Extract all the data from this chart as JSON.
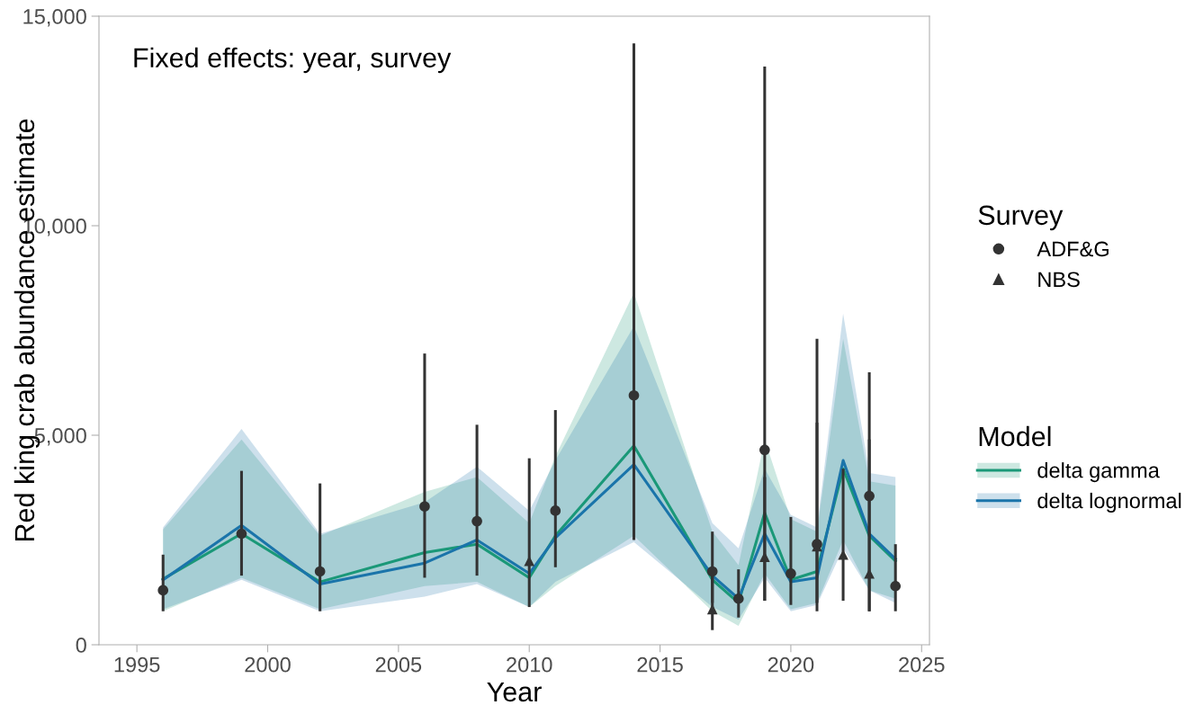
{
  "chart_data": {
    "type": "line",
    "xlabel": "Year",
    "ylabel": "Red king crab abundance estimate",
    "legend_title": [
      "Survey",
      "Model"
    ],
    "annotations": [
      "Fixed effects: year, survey"
    ],
    "xlim": [
      1993.55,
      2025.3
    ],
    "xticks": [
      1995,
      2000,
      2005,
      2010,
      2015,
      2020,
      2025
    ],
    "ylim": [
      0,
      15000
    ],
    "yticks": [
      {
        "value": 0,
        "label": "0"
      },
      {
        "value": 5000,
        "label": "5,000"
      },
      {
        "value": 10000,
        "label": "10,000"
      },
      {
        "value": 15000,
        "label": "15,000"
      }
    ],
    "grid": false,
    "legend": "right",
    "series": [
      {
        "name": "delta gamma",
        "color": "#1a9878",
        "x": [
          1996,
          1999,
          2002,
          2006,
          2008,
          2010,
          2011,
          2014,
          2017,
          2018,
          2019,
          2020,
          2021,
          2022,
          2023,
          2024
        ],
        "values": [
          1570,
          2650,
          1500,
          2200,
          2400,
          1600,
          2600,
          4750,
          1550,
          1000,
          3150,
          1550,
          1750,
          4200,
          2600,
          2000
        ],
        "lower": [
          800,
          1600,
          850,
          1400,
          1500,
          900,
          1400,
          2600,
          800,
          450,
          1700,
          850,
          1000,
          2500,
          1300,
          1100
        ],
        "upper": [
          2750,
          4900,
          2600,
          3650,
          4000,
          2900,
          4500,
          8400,
          2700,
          1900,
          4900,
          3000,
          2700,
          7300,
          3900,
          3800
        ]
      },
      {
        "name": "delta lognormal",
        "color": "#1a74aa",
        "x": [
          1996,
          1999,
          2002,
          2006,
          2008,
          2010,
          2011,
          2014,
          2017,
          2018,
          2019,
          2020,
          2021,
          2022,
          2023,
          2024
        ],
        "values": [
          1550,
          2850,
          1450,
          1950,
          2500,
          1700,
          2550,
          4300,
          1650,
          1100,
          2650,
          1500,
          1600,
          4400,
          2650,
          2050
        ],
        "lower": [
          850,
          1550,
          800,
          1150,
          1450,
          900,
          1500,
          2450,
          900,
          600,
          1600,
          800,
          950,
          2300,
          1300,
          1000
        ],
        "upper": [
          2800,
          5150,
          2650,
          3400,
          4250,
          3200,
          4400,
          7600,
          2900,
          2300,
          4200,
          3100,
          2800,
          7900,
          4100,
          4000
        ]
      },
      {
        "name": "ADF&G",
        "type": "scatter",
        "marker": "circle",
        "color": "#333333",
        "x": [
          1996,
          1999,
          2002,
          2006,
          2008,
          2011,
          2014,
          2017,
          2018,
          2019,
          2020,
          2021,
          2023,
          2024
        ],
        "values": [
          1300,
          2650,
          1750,
          3300,
          2950,
          3200,
          5950,
          1750,
          1100,
          4650,
          1700,
          2400,
          3550,
          1400
        ],
        "errors": [
          [
            800,
            2150
          ],
          [
            1650,
            4150
          ],
          [
            800,
            3850
          ],
          [
            1600,
            6950
          ],
          [
            1650,
            5250
          ],
          [
            1850,
            5600
          ],
          [
            2500,
            14350
          ],
          [
            1000,
            2700
          ],
          [
            650,
            1800
          ],
          [
            1050,
            13800
          ],
          [
            950,
            3050
          ],
          [
            800,
            7300
          ],
          [
            800,
            6500
          ],
          [
            800,
            2400
          ]
        ]
      },
      {
        "name": "NBS",
        "type": "scatter",
        "marker": "triangle",
        "color": "#333333",
        "x": [
          2010,
          2017,
          2019,
          2021,
          2022,
          2023
        ],
        "values": [
          2000,
          850,
          2100,
          2350,
          2150,
          1700
        ],
        "errors": [
          [
            900,
            4450
          ],
          [
            350,
            1700
          ],
          [
            1050,
            4000
          ],
          [
            1000,
            5300
          ],
          [
            1050,
            4200
          ],
          [
            800,
            4900
          ]
        ]
      }
    ]
  }
}
